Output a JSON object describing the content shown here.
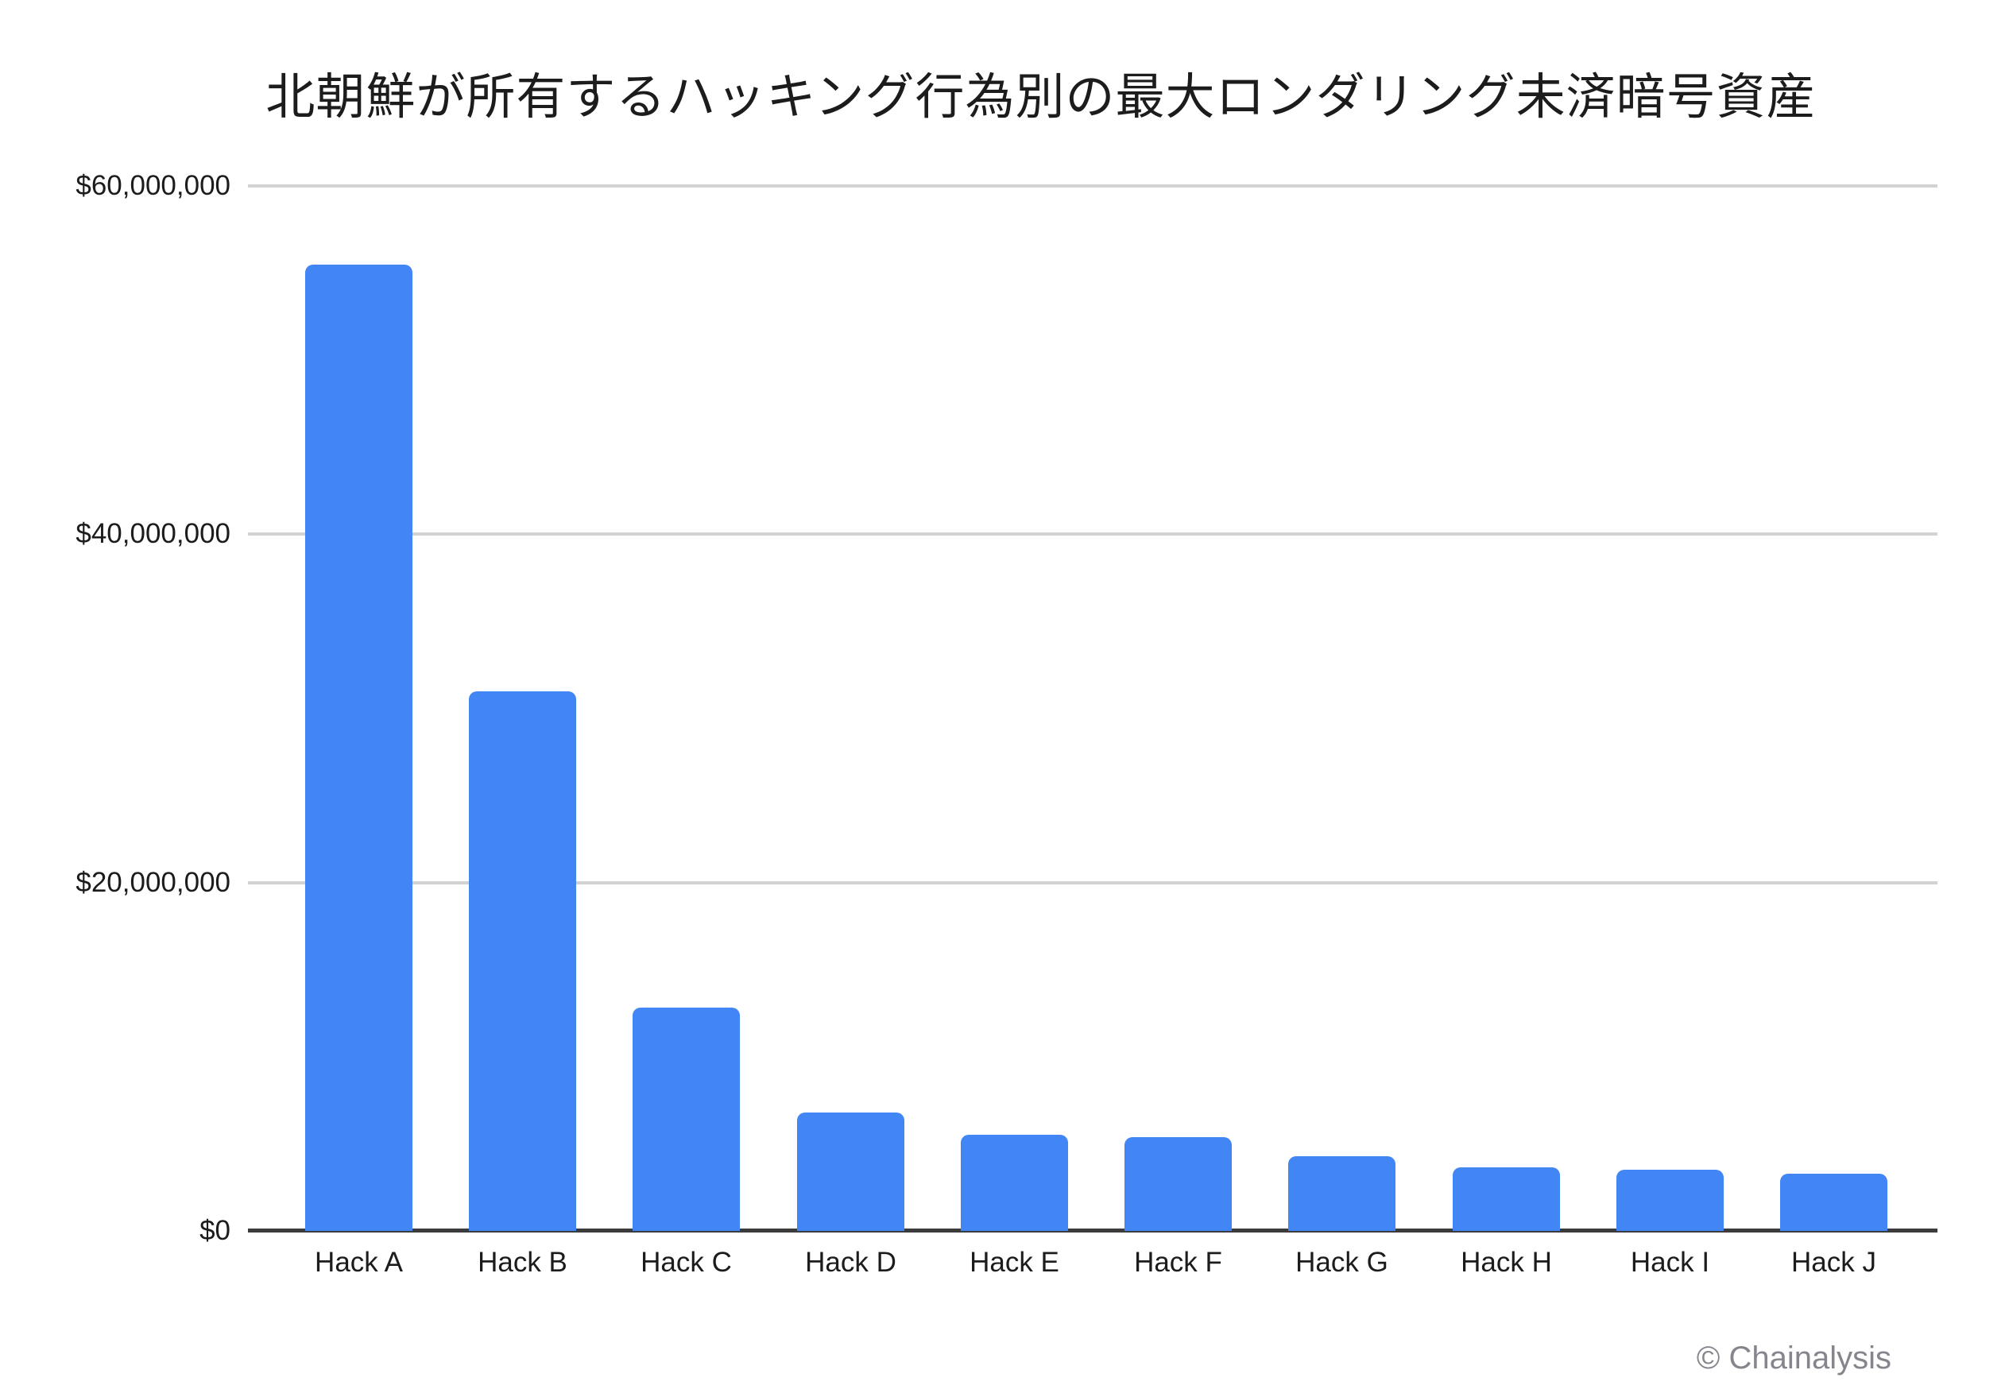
{
  "title": "北朝鮮が所有するハッキング行為別の最大ロンダリング未済暗号資産",
  "watermark": "© Chainalysis",
  "colors": {
    "bar": "#4285F4",
    "gridline": "#D2D2D2",
    "axis": "#3C3C3C",
    "text": "#1C1C1C",
    "watermark": "#85858D",
    "background": "#FFFFFF"
  },
  "chart_data": {
    "type": "bar",
    "title": "北朝鮮が所有するハッキング行為別の最大ロンダリング未済暗号資産",
    "categories": [
      "Hack A",
      "Hack B",
      "Hack C",
      "Hack D",
      "Hack E",
      "Hack F",
      "Hack G",
      "Hack H",
      "Hack I",
      "Hack J"
    ],
    "values": [
      55500000,
      31000000,
      12800000,
      6800000,
      5500000,
      5400000,
      4300000,
      3650000,
      3500000,
      3300000
    ],
    "xlabel": "",
    "ylabel": "",
    "ylim": [
      0,
      60000000
    ],
    "ytick_labels": [
      "$0",
      "$20,000,000",
      "$40,000,000",
      "$60,000,000"
    ],
    "grid": true,
    "legend": false,
    "bar_color": "#4285F4",
    "source_label": "© Chainalysis"
  }
}
